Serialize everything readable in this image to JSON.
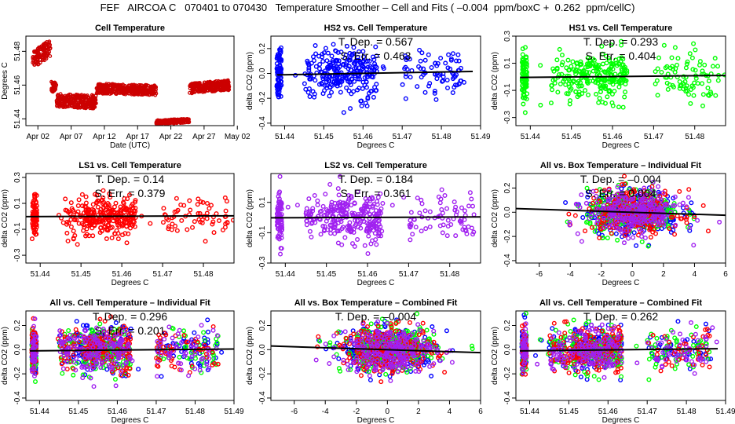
{
  "title": "FEF   AIRCOA C   070401 to 070430   Temperature Smoother – Cell and Fits ( –0.004  ppm/boxC +  0.262  ppm/cellC)",
  "colors": {
    "HS2": "#0000ff",
    "HS1": "#00ff00",
    "LS1": "#ff0000",
    "LS2": "#a020f0",
    "cell": "#cc0000",
    "fit": "#000000"
  },
  "chart_data": [
    {
      "id": "cell-temp",
      "type": "scatter",
      "title": "Cell Temperature",
      "xlabel": "Date (UTC)",
      "ylabel": "Degrees C",
      "xticks": [
        "Apr 02",
        "Apr 07",
        "Apr 12",
        "Apr 17",
        "Apr 22",
        "Apr 27",
        "May 02"
      ],
      "xlim_days": [
        0.2,
        31.5
      ],
      "xtick_days": [
        2,
        7,
        12,
        17,
        22,
        27,
        32
      ],
      "ylim": [
        51.436,
        51.489
      ],
      "yticks": [
        51.44,
        51.46,
        51.48
      ],
      "ytick_labels": [
        "51.44",
        "51.46",
        "51.48"
      ],
      "series": [
        {
          "name": "Cell",
          "color": "#cc0000",
          "segments": [
            {
              "x0": 1.2,
              "x1": 3.9,
              "y0": 51.475,
              "y1": 51.482,
              "spread": 0.005
            },
            {
              "x0": 4.0,
              "x1": 4.8,
              "y0": 51.459,
              "y1": 51.459,
              "spread": 0.003
            },
            {
              "x0": 4.8,
              "x1": 10.8,
              "y0": 51.451,
              "y1": 51.45,
              "spread": 0.004
            },
            {
              "x0": 10.8,
              "x1": 19.8,
              "y0": 51.458,
              "y1": 51.457,
              "spread": 0.003
            },
            {
              "x0": 19.8,
              "x1": 24.8,
              "y0": 51.438,
              "y1": 51.439,
              "spread": 0.0012
            },
            {
              "x0": 24.8,
              "x1": 30.8,
              "y0": 51.458,
              "y1": 51.46,
              "spread": 0.003
            }
          ]
        }
      ]
    },
    {
      "id": "hs2",
      "type": "scatter",
      "title": "HS2 vs. Cell Temperature",
      "xlabel": "Degrees C",
      "ylabel": "delta CO2 (ppm)",
      "xlim": [
        51.4365,
        51.49
      ],
      "xticks": [
        51.44,
        51.45,
        51.46,
        51.47,
        51.48,
        51.49
      ],
      "xtick_labels": [
        "51.44",
        "51.45",
        "51.46",
        "51.47",
        "51.48",
        "51.49"
      ],
      "ylim": [
        -0.42,
        0.3
      ],
      "yticks": [
        -0.4,
        -0.2,
        0.0,
        0.2
      ],
      "ytick_labels": [
        "-0.4",
        "-0.2",
        "0.0",
        "0.2"
      ],
      "annotations": [
        "T. Dep. =  0.567",
        "S. Err. =  0.463"
      ],
      "series": [
        {
          "name": "HS2",
          "color": "#0000ff",
          "sd": 0.1
        }
      ],
      "fit": {
        "x0": 51.438,
        "y0": -0.012,
        "x1": 51.488,
        "y1": 0.016
      }
    },
    {
      "id": "hs1",
      "type": "scatter",
      "title": "HS1 vs. Cell Temperature",
      "xlabel": "Degrees C",
      "ylabel": "delta CO2 (ppm)",
      "xlim": [
        51.4365,
        51.4875
      ],
      "xticks": [
        51.44,
        51.45,
        51.46,
        51.47,
        51.48
      ],
      "xtick_labels": [
        "51.44",
        "51.45",
        "51.46",
        "51.47",
        "51.48"
      ],
      "ylim": [
        -0.36,
        0.3
      ],
      "yticks": [
        -0.3,
        -0.1,
        0.1,
        0.3
      ],
      "ytick_labels": [
        "-0.3",
        "-0.1",
        "0.1",
        "0.3"
      ],
      "annotations": [
        "T. Dep. =  0.293",
        "S. Err. =  0.404"
      ],
      "series": [
        {
          "name": "HS1",
          "color": "#00ff00",
          "sd": 0.09
        }
      ],
      "fit": {
        "x0": 51.4375,
        "y0": -0.005,
        "x1": 51.4875,
        "y1": 0.01
      }
    },
    {
      "id": "ls1",
      "type": "scatter",
      "title": "LS1 vs. Cell Temperature",
      "xlabel": "Degrees C",
      "ylabel": "delta CO2 (ppm)",
      "xlim": [
        51.4365,
        51.4875
      ],
      "xticks": [
        51.44,
        51.45,
        51.46,
        51.47,
        51.48
      ],
      "xtick_labels": [
        "51.44",
        "51.45",
        "51.46",
        "51.47",
        "51.48"
      ],
      "ylim": [
        -0.36,
        0.33
      ],
      "yticks": [
        -0.3,
        -0.1,
        0.1,
        0.3
      ],
      "ytick_labels": [
        "-0.3",
        "-0.1",
        "0.1",
        "0.3"
      ],
      "annotations": [
        "T. Dep. =  0.14",
        "S. Err. =  0.379"
      ],
      "series": [
        {
          "name": "LS1",
          "color": "#ff0000",
          "sd": 0.08
        }
      ],
      "fit": {
        "x0": 51.4365,
        "y0": -0.002,
        "x1": 51.4875,
        "y1": 0.004
      }
    },
    {
      "id": "ls2",
      "type": "scatter",
      "title": "LS2 vs. Cell Temperature",
      "xlabel": "Degrees C",
      "ylabel": "delta CO2 (ppm)",
      "xlim": [
        51.4365,
        51.4875
      ],
      "xticks": [
        51.44,
        51.45,
        51.46,
        51.47,
        51.48
      ],
      "xtick_labels": [
        "51.44",
        "51.45",
        "51.46",
        "51.47",
        "51.48"
      ],
      "ylim": [
        -0.3,
        0.29
      ],
      "yticks": [
        -0.3,
        -0.1,
        0.1
      ],
      "ytick_labels": [
        "-0.3",
        "-0.1",
        "0.1"
      ],
      "annotations": [
        "T. Dep. =  0.184",
        "S. Err. =  0.361"
      ],
      "series": [
        {
          "name": "LS2",
          "color": "#a020f0",
          "sd": 0.08
        }
      ],
      "fit": {
        "x0": 51.4365,
        "y0": -0.002,
        "x1": 51.4875,
        "y1": 0.004
      }
    },
    {
      "id": "all-box-ind",
      "type": "scatter",
      "title": "All vs. Box Temperature – Individual Fit",
      "xlabel": "Degrees C",
      "ylabel": "delta CO2 (ppm)",
      "xlim": [
        -7.5,
        6
      ],
      "xticks": [
        -6,
        -4,
        -2,
        0,
        2,
        4,
        6
      ],
      "xtick_labels": [
        "-6",
        "-4",
        "-2",
        "0",
        "2",
        "4",
        "6"
      ],
      "ylim": [
        -0.42,
        0.32
      ],
      "yticks": [
        -0.4,
        -0.2,
        0.0,
        0.2
      ],
      "ytick_labels": [
        "-0.4",
        "-0.2",
        "0.0",
        "0.2"
      ],
      "annotations": [
        "T. Dep. =  –0.004",
        "S. Err. =  0.004"
      ],
      "series": [
        {
          "name": "HS2",
          "color": "#0000ff"
        },
        {
          "name": "HS1",
          "color": "#00ff00"
        },
        {
          "name": "LS1",
          "color": "#ff0000"
        },
        {
          "name": "LS2",
          "color": "#a020f0"
        }
      ],
      "fit": {
        "x0": -7.5,
        "y0": 0.03,
        "x1": 6,
        "y1": -0.025
      },
      "xmode": "box"
    },
    {
      "id": "all-cell-ind",
      "type": "scatter",
      "title": "All vs. Cell Temperature – Individual Fit",
      "xlabel": "Degrees C",
      "ylabel": "delta CO2 (ppm)",
      "xlim": [
        51.4365,
        51.49
      ],
      "xticks": [
        51.44,
        51.45,
        51.46,
        51.47,
        51.48,
        51.49
      ],
      "xtick_labels": [
        "51.44",
        "51.45",
        "51.46",
        "51.47",
        "51.48",
        "51.49"
      ],
      "ylim": [
        -0.42,
        0.32
      ],
      "yticks": [
        -0.4,
        -0.2,
        0.0,
        0.2
      ],
      "ytick_labels": [
        "-0.4",
        "-0.2",
        "0.0",
        "0.2"
      ],
      "annotations": [
        "T. Dep. =  0.296",
        "S. Err. =  0.201"
      ],
      "series": [
        {
          "name": "HS2",
          "color": "#0000ff"
        },
        {
          "name": "HS1",
          "color": "#00ff00"
        },
        {
          "name": "LS1",
          "color": "#ff0000"
        },
        {
          "name": "LS2",
          "color": "#a020f0"
        }
      ],
      "fit": {
        "x0": 51.4375,
        "y0": -0.01,
        "x1": 51.49,
        "y1": 0.005
      }
    },
    {
      "id": "all-box-comb",
      "type": "scatter",
      "title": "All vs. Box Temperature – Combined Fit",
      "xlabel": "Degrees C",
      "ylabel": "delta CO2 (ppm)",
      "xlim": [
        -7.5,
        6
      ],
      "xticks": [
        -6,
        -4,
        -2,
        0,
        2,
        4,
        6
      ],
      "xtick_labels": [
        "-6",
        "-4",
        "-2",
        "0",
        "2",
        "4",
        "6"
      ],
      "ylim": [
        -0.42,
        0.32
      ],
      "yticks": [
        -0.4,
        -0.2,
        0.0,
        0.2
      ],
      "ytick_labels": [
        "-0.4",
        "-0.2",
        "0.0",
        "0.2"
      ],
      "annotations": [
        "T. Dep. =  –0.004"
      ],
      "series": [
        {
          "name": "HS2",
          "color": "#0000ff"
        },
        {
          "name": "HS1",
          "color": "#00ff00"
        },
        {
          "name": "LS1",
          "color": "#ff0000"
        },
        {
          "name": "LS2",
          "color": "#a020f0"
        }
      ],
      "fit": {
        "x0": -7.5,
        "y0": 0.03,
        "x1": 6,
        "y1": -0.025
      },
      "xmode": "box"
    },
    {
      "id": "all-cell-comb",
      "type": "scatter",
      "title": "All vs. Cell Temperature – Combined Fit",
      "xlabel": "Degrees C",
      "ylabel": "delta CO2 (ppm)",
      "xlim": [
        51.4365,
        51.49
      ],
      "xticks": [
        51.44,
        51.45,
        51.46,
        51.47,
        51.48,
        51.49
      ],
      "xtick_labels": [
        "51.44",
        "51.45",
        "51.46",
        "51.47",
        "51.48",
        "51.49"
      ],
      "ylim": [
        -0.42,
        0.32
      ],
      "yticks": [
        -0.4,
        -0.2,
        0.0,
        0.2
      ],
      "ytick_labels": [
        "-0.4",
        "-0.2",
        "0.0",
        "0.2"
      ],
      "annotations": [
        "T. Dep. =  0.262"
      ],
      "series": [
        {
          "name": "HS2",
          "color": "#0000ff"
        },
        {
          "name": "HS1",
          "color": "#00ff00"
        },
        {
          "name": "LS1",
          "color": "#ff0000"
        },
        {
          "name": "LS2",
          "color": "#a020f0"
        }
      ],
      "fit": {
        "x0": 51.4375,
        "y0": -0.01,
        "x1": 51.488,
        "y1": 0.008
      }
    }
  ]
}
